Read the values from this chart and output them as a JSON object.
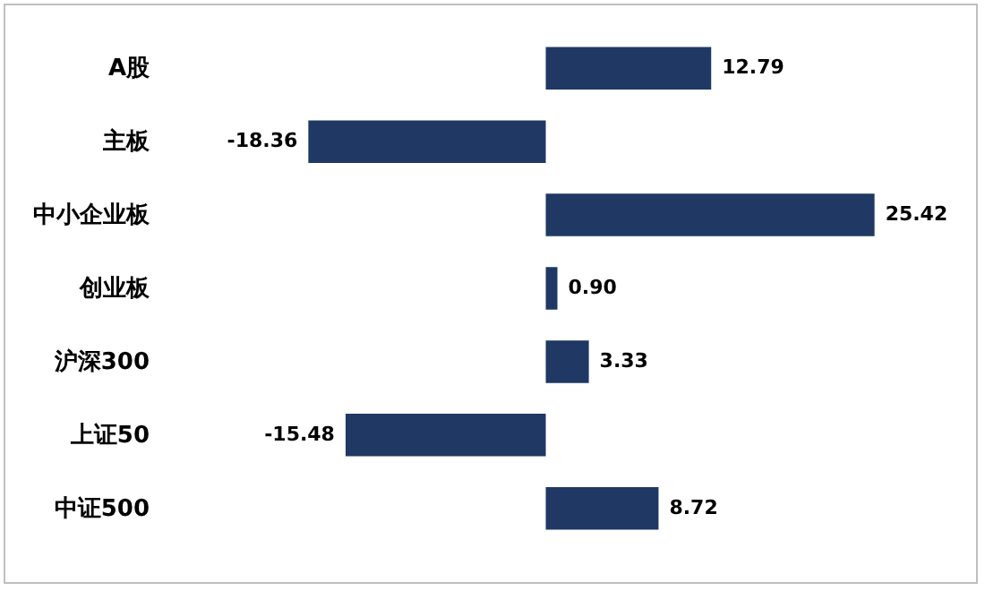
{
  "chart_data": {
    "type": "bar",
    "orientation": "horizontal",
    "categories": [
      "A股",
      "主板",
      "中小企业板",
      "创业板",
      "沪深300",
      "上证50",
      "中证500"
    ],
    "values": [
      12.79,
      -18.36,
      25.42,
      0.9,
      3.33,
      -15.48,
      8.72
    ],
    "value_labels": [
      "12.79",
      "-18.36",
      "25.42",
      "0.90",
      "3.33",
      "-15.48",
      "8.72"
    ],
    "color": "#1f3864"
  }
}
